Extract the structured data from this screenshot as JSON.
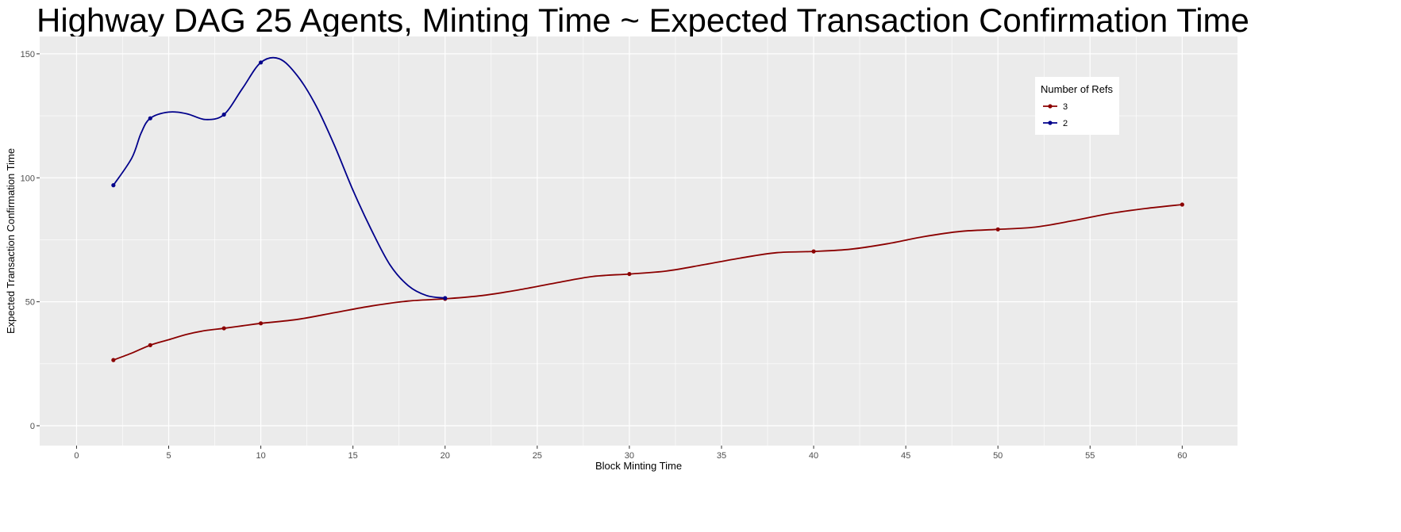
{
  "chart_data": {
    "type": "line",
    "title": "Highway DAG 25 Agents,  Minting Time ~ Expected Transaction Confirmation Time",
    "xlabel": "Block Minting Time",
    "ylabel": "Expected Transaction Confirmation Time",
    "xlim": [
      -2,
      63
    ],
    "ylim": [
      -8,
      157
    ],
    "xticks": [
      0,
      5,
      10,
      15,
      20,
      25,
      30,
      35,
      40,
      45,
      50,
      55,
      60
    ],
    "yticks": [
      0,
      50,
      100,
      150
    ],
    "grid": true,
    "legend": {
      "title": "Number of Refs",
      "placement": "top-right"
    },
    "series": [
      {
        "name": "3",
        "color": "#8b0000",
        "x": [
          2,
          4,
          8,
          10,
          20,
          30,
          40,
          50,
          60
        ],
        "y": [
          26.5,
          32.5,
          39.3,
          41.3,
          51.2,
          61.2,
          70.3,
          79.2,
          89.2
        ],
        "curve": [
          [
            2,
            26.5
          ],
          [
            3,
            29.3
          ],
          [
            4,
            32.5
          ],
          [
            5,
            34.7
          ],
          [
            6,
            36.9
          ],
          [
            7,
            38.4
          ],
          [
            8,
            39.3
          ],
          [
            9,
            40.3
          ],
          [
            10,
            41.3
          ],
          [
            12,
            42.9
          ],
          [
            14,
            45.6
          ],
          [
            16,
            48.3
          ],
          [
            18,
            50.3
          ],
          [
            20,
            51.2
          ],
          [
            22,
            52.5
          ],
          [
            24,
            54.8
          ],
          [
            26,
            57.6
          ],
          [
            28,
            60.2
          ],
          [
            30,
            61.2
          ],
          [
            32,
            62.4
          ],
          [
            34,
            64.9
          ],
          [
            36,
            67.6
          ],
          [
            38,
            69.8
          ],
          [
            40,
            70.3
          ],
          [
            42,
            71.2
          ],
          [
            44,
            73.4
          ],
          [
            46,
            76.3
          ],
          [
            48,
            78.4
          ],
          [
            50,
            79.2
          ],
          [
            52,
            80.1
          ],
          [
            54,
            82.6
          ],
          [
            56,
            85.5
          ],
          [
            58,
            87.6
          ],
          [
            60,
            89.2
          ]
        ]
      },
      {
        "name": "2",
        "color": "#00008b",
        "x": [
          2,
          4,
          8,
          10,
          20
        ],
        "y": [
          97,
          124,
          125.5,
          146.5,
          51.5
        ],
        "curve": [
          [
            2,
            97
          ],
          [
            3,
            108
          ],
          [
            3.5,
            118
          ],
          [
            4,
            124
          ],
          [
            5,
            126.5
          ],
          [
            6,
            125.8
          ],
          [
            7,
            123.5
          ],
          [
            8,
            125.5
          ],
          [
            9,
            136
          ],
          [
            10,
            146.5
          ],
          [
            11,
            148
          ],
          [
            12,
            141
          ],
          [
            13,
            129
          ],
          [
            14,
            113
          ],
          [
            15,
            95
          ],
          [
            16,
            79
          ],
          [
            17,
            65
          ],
          [
            18,
            56.5
          ],
          [
            19,
            52.5
          ],
          [
            20,
            51.5
          ]
        ]
      }
    ]
  }
}
